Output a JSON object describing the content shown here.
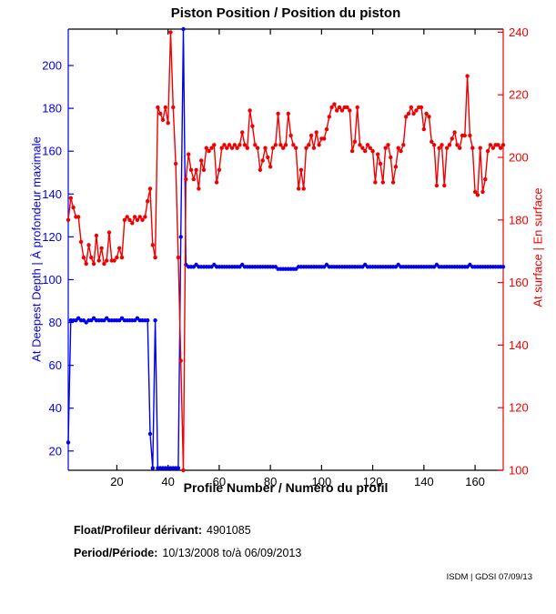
{
  "chart_data": {
    "type": "line",
    "title": "Piston Position / Position du piston",
    "xlabel": "Profile Number / Numéro du profil",
    "ylabel_left": "At Deepest Depth | À profondeur maximale",
    "ylabel_right": "At surface | En surface",
    "xlim": [
      1,
      171
    ],
    "ylim_left": [
      11,
      217
    ],
    "ylim_right": [
      100,
      241
    ],
    "xticks": [
      20,
      40,
      60,
      80,
      100,
      120,
      140,
      160
    ],
    "yticks_left": [
      20,
      40,
      60,
      80,
      100,
      120,
      140,
      160,
      180,
      200
    ],
    "yticks_right": [
      100,
      120,
      140,
      160,
      180,
      200,
      220,
      240
    ],
    "grid": false,
    "legend": "none",
    "colors": {
      "left": "#0000ee",
      "right": "#ee0000"
    },
    "series": [
      {
        "name": "At Deepest Depth | À profondeur maximale",
        "axis": "left",
        "color": "#0000f0",
        "x_start": 1,
        "values": [
          24,
          81,
          81,
          81,
          82,
          81,
          81,
          80,
          81,
          81,
          82,
          81,
          81,
          81,
          81,
          82,
          81,
          81,
          81,
          81,
          81,
          82,
          81,
          81,
          81,
          81,
          81,
          82,
          81,
          81,
          81,
          81,
          28,
          12,
          81,
          12,
          12,
          12,
          12,
          12,
          12,
          12,
          12,
          12,
          120,
          217,
          107,
          106,
          106,
          106,
          107,
          106,
          106,
          106,
          106,
          106,
          106,
          107,
          106,
          106,
          106,
          106,
          106,
          106,
          106,
          106,
          106,
          106,
          107,
          106,
          106,
          106,
          106,
          106,
          106,
          106,
          106,
          106,
          106,
          106,
          106,
          106,
          105,
          105,
          105,
          105,
          105,
          105,
          105,
          105,
          106,
          106,
          106,
          106,
          106,
          106,
          106,
          106,
          106,
          106,
          106,
          107,
          106,
          106,
          106,
          106,
          106,
          106,
          106,
          106,
          106,
          106,
          106,
          106,
          106,
          106,
          107,
          106,
          106,
          106,
          106,
          106,
          106,
          106,
          106,
          106,
          106,
          106,
          106,
          107,
          106,
          106,
          106,
          106,
          106,
          106,
          106,
          106,
          106,
          106,
          106,
          106,
          106,
          106,
          107,
          106,
          106,
          106,
          106,
          106,
          106,
          106,
          106,
          106,
          106,
          106,
          106,
          107,
          106,
          106,
          106,
          106,
          106,
          106,
          106,
          106,
          106,
          106,
          106,
          106,
          106
        ]
      },
      {
        "name": "At surface | En surface",
        "axis": "right",
        "color": "#f00000",
        "x_start": 1,
        "values": [
          180,
          187,
          184,
          181,
          181,
          173,
          168,
          166,
          172,
          168,
          166,
          175,
          167,
          171,
          166,
          167,
          176,
          167,
          167,
          168,
          171,
          168,
          180,
          181,
          180,
          179,
          181,
          180,
          181,
          180,
          181,
          186,
          190,
          172,
          168,
          216,
          214,
          212,
          216,
          211,
          240,
          216,
          198,
          168,
          135,
          100,
          193,
          201,
          196,
          193,
          196,
          190,
          199,
          196,
          203,
          202,
          203,
          204,
          192,
          196,
          203,
          204,
          203,
          204,
          203,
          204,
          203,
          204,
          208,
          204,
          203,
          215,
          210,
          204,
          203,
          196,
          199,
          203,
          200,
          197,
          203,
          204,
          214,
          204,
          203,
          204,
          214,
          207,
          204,
          203,
          190,
          196,
          190,
          203,
          204,
          207,
          203,
          208,
          204,
          206,
          206,
          209,
          213,
          216,
          217,
          215,
          216,
          215,
          216,
          216,
          215,
          202,
          205,
          216,
          204,
          203,
          202,
          204,
          203,
          202,
          192,
          201,
          198,
          192,
          203,
          204,
          200,
          192,
          197,
          203,
          202,
          204,
          213,
          214,
          216,
          214,
          215,
          216,
          216,
          209,
          214,
          213,
          205,
          204,
          191,
          203,
          204,
          191,
          203,
          204,
          206,
          208,
          204,
          203,
          207,
          207,
          226,
          207,
          203,
          189,
          188,
          203,
          189,
          193,
          202,
          204,
          203,
          204,
          204,
          203,
          204
        ]
      }
    ]
  },
  "annotations": {
    "float_label": "Float/Profileur dérivant:",
    "float_value": "4901085",
    "period_label": "Period/Période:",
    "period_value": "10/13/2008 to/à 06/09/2013",
    "footer": "ISDM | GDSI 07/09/13"
  }
}
